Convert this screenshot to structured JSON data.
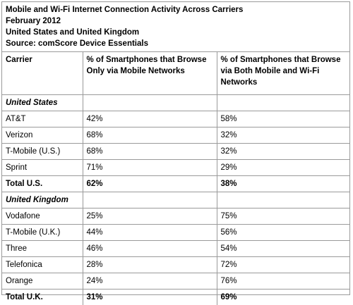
{
  "header": {
    "title": "Mobile and Wi-Fi Internet Connection Activity Across Carriers",
    "date": "February 2012",
    "region": "United States and United Kingdom",
    "source": "Source: comScore Device Essentials"
  },
  "columns": [
    "Carrier",
    "% of Smartphones that Browse Only via Mobile Networks",
    "% of Smartphones that Browse via Both Mobile and Wi-Fi Networks"
  ],
  "sections": [
    {
      "name": "United States",
      "rows": [
        {
          "carrier": "AT&T",
          "mobile_only": "42%",
          "both": "58%"
        },
        {
          "carrier": "Verizon",
          "mobile_only": "68%",
          "both": "32%"
        },
        {
          "carrier": "T-Mobile (U.S.)",
          "mobile_only": "68%",
          "both": "32%"
        },
        {
          "carrier": "Sprint",
          "mobile_only": "71%",
          "both": "29%"
        }
      ],
      "total": {
        "carrier": "Total U.S.",
        "mobile_only": "62%",
        "both": "38%"
      }
    },
    {
      "name": "United Kingdom",
      "rows": [
        {
          "carrier": "Vodafone",
          "mobile_only": "25%",
          "both": "75%"
        },
        {
          "carrier": "T-Mobile (U.K.)",
          "mobile_only": "44%",
          "both": "56%"
        },
        {
          "carrier": "Three",
          "mobile_only": "46%",
          "both": "54%"
        },
        {
          "carrier": "Telefonica",
          "mobile_only": "28%",
          "both": "72%"
        },
        {
          "carrier": "Orange",
          "mobile_only": "24%",
          "both": "76%"
        }
      ],
      "total": {
        "carrier": "Total U.K.",
        "mobile_only": "31%",
        "both": "69%"
      }
    }
  ],
  "colors": {
    "border": "#9a9a9a",
    "text": "#000000",
    "background": "#ffffff"
  }
}
